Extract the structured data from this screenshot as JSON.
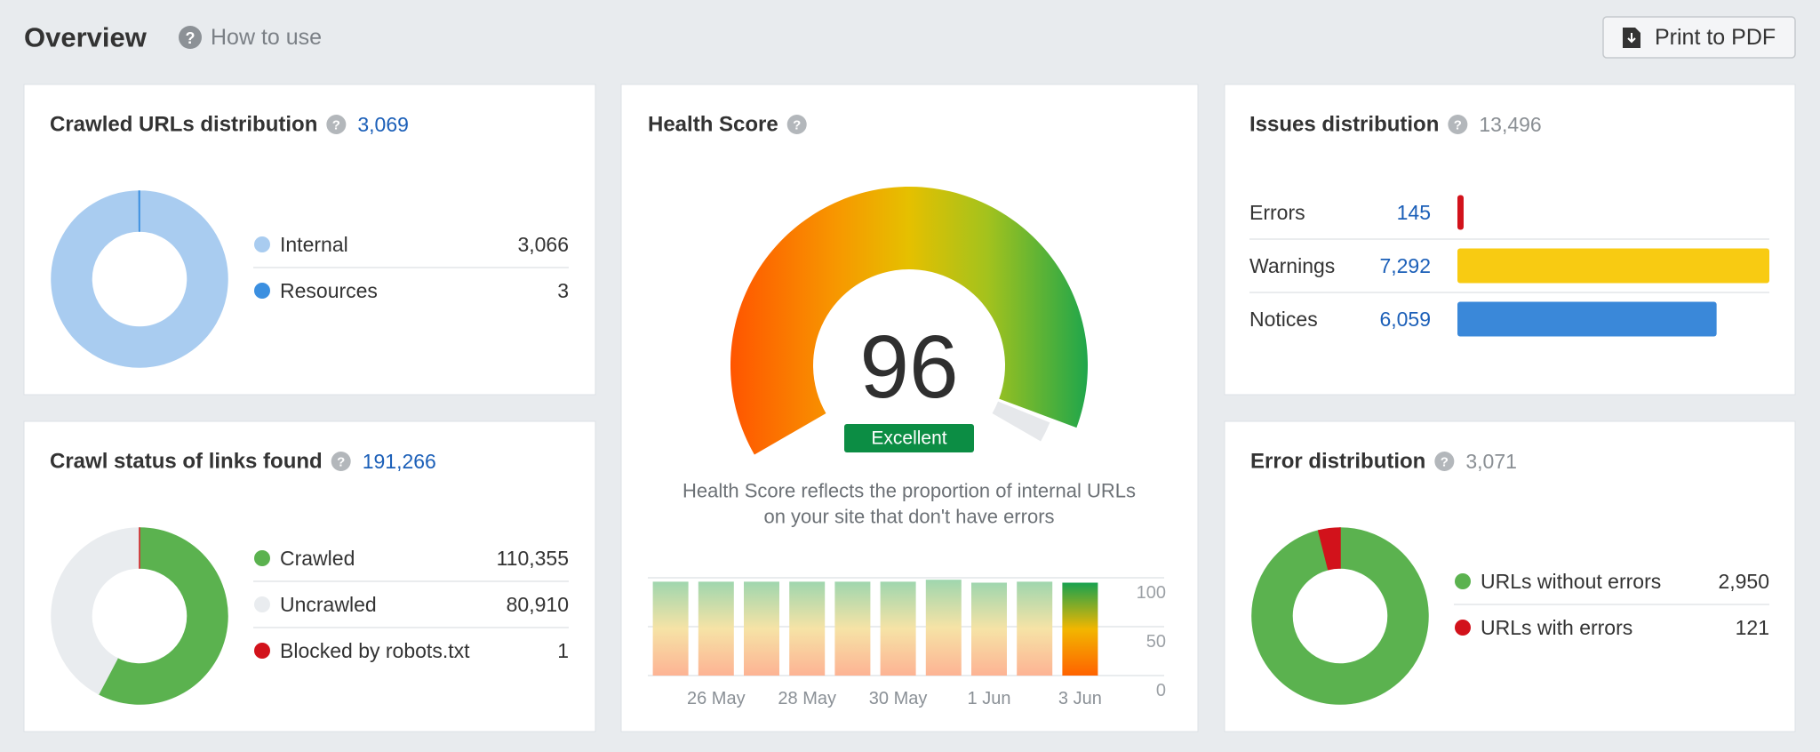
{
  "header": {
    "title": "Overview",
    "help": "How to use",
    "button": "Print to PDF"
  },
  "chart_data": [
    {
      "type": "donut",
      "title": "Crawled URLs distribution",
      "total": "3,069",
      "categories": [
        "Internal",
        "Resources"
      ],
      "values": [
        3066,
        3
      ],
      "value_labels": [
        "3,066",
        "3"
      ],
      "colors": [
        "#a9ccf0",
        "#3b8fe0"
      ]
    },
    {
      "type": "donut",
      "title": "Crawl status of links found",
      "total": "191,266",
      "categories": [
        "Crawled",
        "Uncrawled",
        "Blocked by robots.txt"
      ],
      "values": [
        110355,
        80910,
        1
      ],
      "value_labels": [
        "110,355",
        "80,910",
        "1"
      ],
      "colors": [
        "#5bb24f",
        "#e9ecef",
        "#d2121b"
      ]
    },
    {
      "type": "gauge",
      "title": "Health Score",
      "value": 96,
      "label": "Excellent",
      "ylim": [
        0,
        100
      ],
      "description": [
        "Health Score reflects the proportion of internal URLs",
        "on your site that don't have errors"
      ]
    },
    {
      "type": "bar",
      "categories": [
        null,
        "26 May",
        null,
        "28 May",
        null,
        "30 May",
        null,
        "1 Jun",
        null,
        "3 Jun"
      ],
      "values": [
        96,
        96,
        96,
        96,
        96,
        96,
        98,
        95,
        96,
        95
      ],
      "ylim": [
        0,
        100
      ],
      "yticks": [
        0,
        50,
        100
      ],
      "grid": true
    },
    {
      "type": "hbar",
      "title": "Issues distribution",
      "total": "13,496",
      "categories": [
        "Errors",
        "Warnings",
        "Notices"
      ],
      "values": [
        145,
        7292,
        6059
      ],
      "value_labels": [
        "145",
        "7,292",
        "6,059"
      ],
      "colors": [
        "#d2121b",
        "#f8cb12",
        "#3a88d9"
      ],
      "xlim": [
        0,
        7292
      ]
    },
    {
      "type": "donut",
      "title": "Error distribution",
      "total": "3,071",
      "categories": [
        "URLs without errors",
        "URLs with errors"
      ],
      "values": [
        2950,
        121
      ],
      "value_labels": [
        "2,950",
        "121"
      ],
      "colors": [
        "#5bb24f",
        "#d2121b"
      ]
    }
  ]
}
